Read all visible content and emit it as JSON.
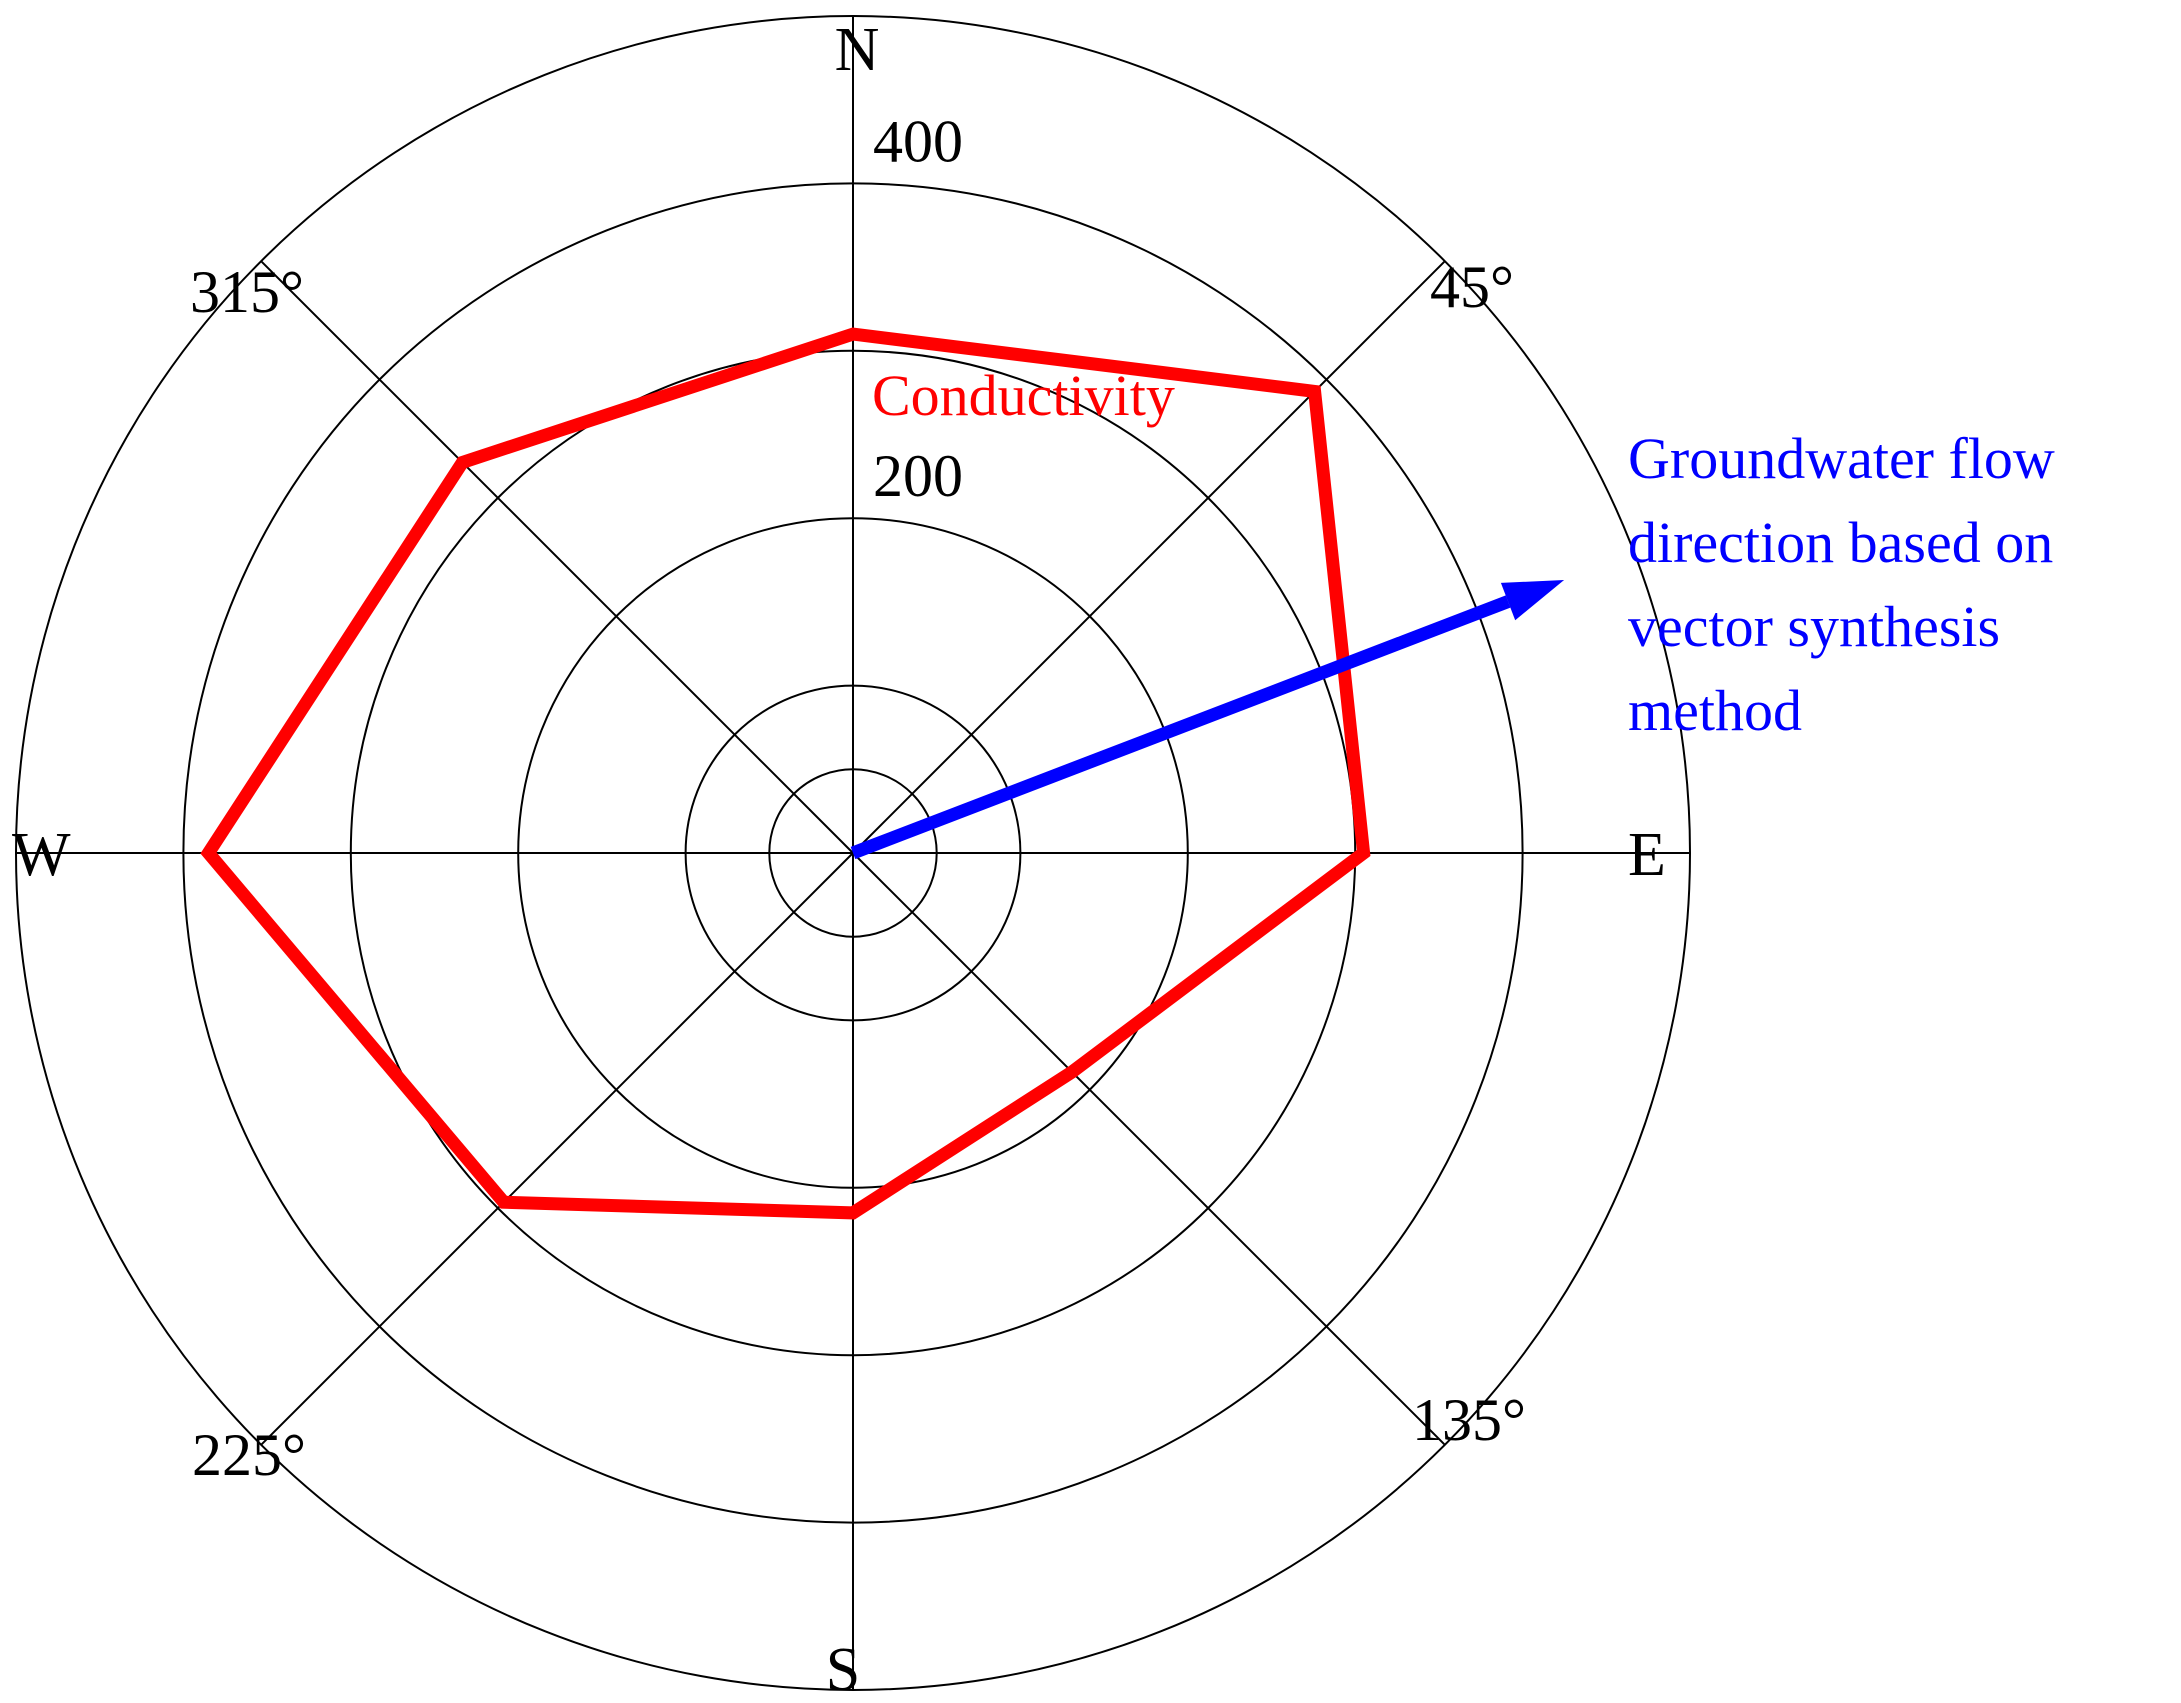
{
  "chart_data": {
    "type": "polar-line",
    "title": "",
    "angle_units": "degrees",
    "direction_labels": [
      {
        "angle": 0,
        "label": "N"
      },
      {
        "angle": 90,
        "label": "E"
      },
      {
        "angle": 180,
        "label": "S"
      },
      {
        "angle": 270,
        "label": "W"
      }
    ],
    "angle_tick_labels": [
      {
        "angle": 45,
        "label": "45°"
      },
      {
        "angle": 135,
        "label": "135°"
      },
      {
        "angle": 225,
        "label": "225°"
      },
      {
        "angle": 315,
        "label": "315°"
      }
    ],
    "radial_ticks": [
      {
        "value": 200,
        "label": "200"
      },
      {
        "value": 400,
        "label": "400"
      }
    ],
    "radial_rings": [
      50,
      100,
      200,
      300,
      400,
      500
    ],
    "r_max": 455,
    "spokes": [
      0,
      45,
      90,
      135,
      180,
      225,
      270,
      315
    ],
    "series": [
      {
        "name": "Conductivity",
        "color": "#ff0000",
        "closed": true,
        "points": [
          {
            "angle": 0,
            "value": 310
          },
          {
            "angle": 45,
            "value": 390
          },
          {
            "angle": 90,
            "value": 305
          },
          {
            "angle": 135,
            "value": 185
          },
          {
            "angle": 180,
            "value": 215
          },
          {
            "angle": 225,
            "value": 295
          },
          {
            "angle": 270,
            "value": 385
          },
          {
            "angle": 315,
            "value": 330
          }
        ]
      }
    ],
    "vector": {
      "label_lines": [
        "Groundwater flow",
        "direction based on",
        "vector synthesis",
        "method"
      ],
      "color": "#0000ff",
      "angle": 69,
      "value": 455
    }
  }
}
